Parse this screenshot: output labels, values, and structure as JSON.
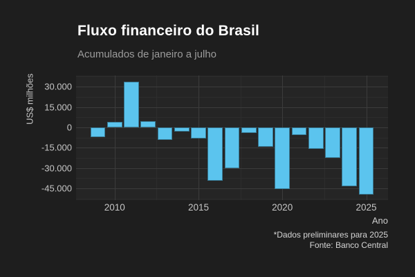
{
  "page": {
    "background": "#1e1e1e",
    "panel_background": "#252525"
  },
  "header": {
    "title": "Fluxo financeiro do Brasil",
    "subtitle": "Acumulados de janeiro a julho"
  },
  "caption": {
    "line1": "*Dados preliminares para 2025",
    "line2": "Fonte: Banco Central"
  },
  "chart_data": {
    "type": "bar",
    "title": "Fluxo financeiro do Brasil",
    "subtitle": "Acumulados de janeiro a julho",
    "xlabel": "Ano",
    "ylabel": "US$ milhões",
    "bar_color": "#5bc4ee",
    "grid": true,
    "legend": false,
    "categories": [
      2009,
      2010,
      2011,
      2012,
      2013,
      2014,
      2015,
      2016,
      2017,
      2018,
      2019,
      2020,
      2021,
      2022,
      2023,
      2024,
      2025
    ],
    "values": [
      -7000,
      4000,
      33500,
      4500,
      -9500,
      -3000,
      -8000,
      -39500,
      -30000,
      -4000,
      -14500,
      -45500,
      -5500,
      -16000,
      -22500,
      -43500,
      -49500
    ],
    "bar_width": 0.9,
    "x_domain": [
      2007.7,
      2026.3
    ],
    "y_domain": [
      38200,
      -53600
    ],
    "x_ticks": [
      {
        "value": 2010,
        "label": "2010"
      },
      {
        "value": 2015,
        "label": "2015"
      },
      {
        "value": 2020,
        "label": "2020"
      },
      {
        "value": 2025,
        "label": "2025"
      }
    ],
    "y_ticks": [
      {
        "value": 30000,
        "label": "30.000"
      },
      {
        "value": 15000,
        "label": "15.000"
      },
      {
        "value": 0,
        "label": "0"
      },
      {
        "value": -15000,
        "label": "-15.000"
      },
      {
        "value": -30000,
        "label": "-30.000"
      },
      {
        "value": -45000,
        "label": "-45.000"
      }
    ],
    "x_minor": [
      2012.5,
      2017.5,
      2022.5
    ],
    "y_minor": [
      37500,
      22500,
      7500,
      -7500,
      -22500,
      -37500,
      -52500
    ]
  }
}
